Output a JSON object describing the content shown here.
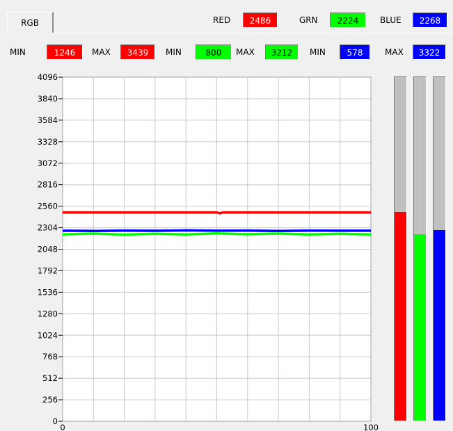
{
  "tab": {
    "label": "RGB"
  },
  "current": {
    "red_label": "RED",
    "red_value": "2486",
    "green_label": "GRN",
    "green_value": "2224",
    "blue_label": "BLUE",
    "blue_value": "2268"
  },
  "limits": {
    "red_min_label": "MIN",
    "red_min": "1246",
    "red_max_label": "MAX",
    "red_max": "3439",
    "green_min_label": "MIN",
    "green_min": "800",
    "green_max_label": "MAX",
    "green_max": "3212",
    "blue_min_label": "MIN",
    "blue_min": "578",
    "blue_max_label": "MAX",
    "blue_max": "3322"
  },
  "colors": {
    "red": "#ff0000",
    "green": "#00ff00",
    "blue": "#0000ff",
    "bar_bg": "#c0c0c0"
  },
  "chart_data": {
    "type": "line",
    "xlim": [
      0,
      100
    ],
    "ylim": [
      0,
      4096
    ],
    "x_ticks": [
      "0",
      "100"
    ],
    "y_ticks": [
      "4096",
      "3840",
      "3584",
      "3328",
      "3072",
      "2816",
      "2560",
      "2304",
      "2048",
      "1792",
      "1536",
      "1280",
      "1024",
      "768",
      "512",
      "256",
      "0"
    ],
    "grid": true,
    "series": [
      {
        "color": "#ff0000",
        "x": [
          0,
          50,
          51,
          52,
          100
        ],
        "y": [
          2486,
          2486,
          2476,
          2486,
          2486
        ]
      },
      {
        "color": "#00ff00",
        "x": [
          0,
          10,
          20,
          30,
          40,
          50,
          60,
          70,
          80,
          90,
          100
        ],
        "y": [
          2224,
          2234,
          2222,
          2232,
          2224,
          2236,
          2226,
          2234,
          2224,
          2232,
          2224
        ]
      },
      {
        "color": "#0000ff",
        "x": [
          0,
          10,
          20,
          30,
          40,
          50,
          60,
          70,
          80,
          90,
          100
        ],
        "y": [
          2268,
          2266,
          2270,
          2267,
          2272,
          2268,
          2270,
          2266,
          2270,
          2268,
          2268
        ]
      }
    ]
  },
  "level_bars": {
    "max": 4096,
    "red": 2486,
    "green": 2224,
    "blue": 2268
  }
}
